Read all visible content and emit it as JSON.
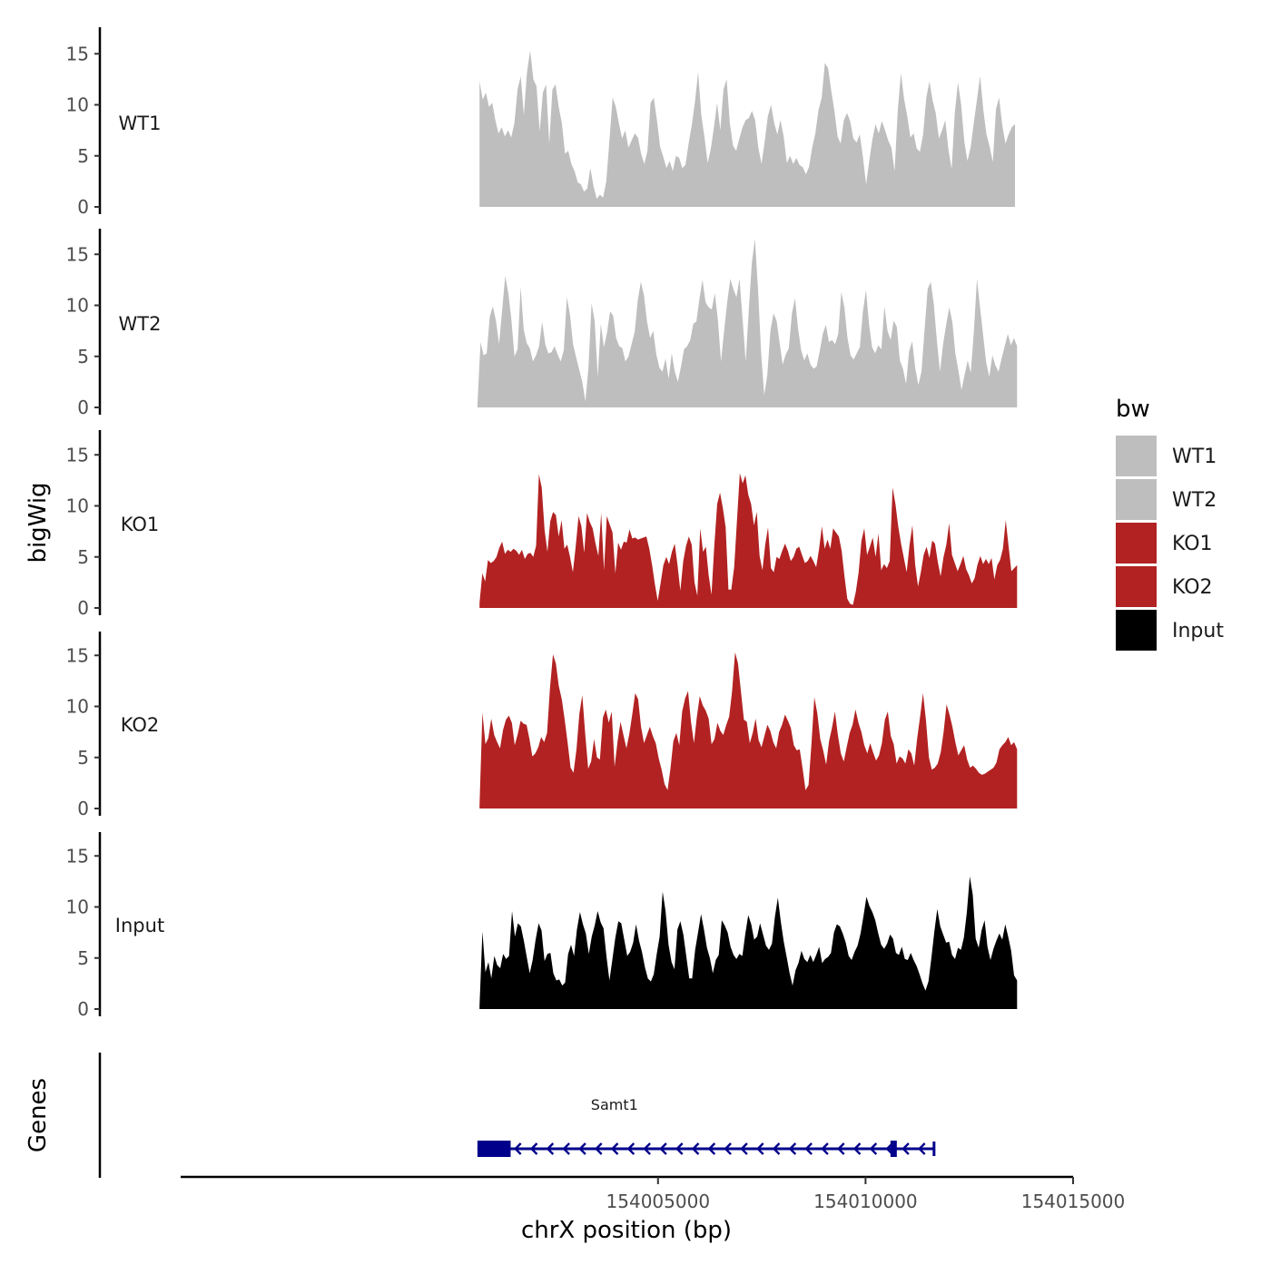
{
  "chart_data": {
    "type": "area",
    "y_axis_title": "bigWig",
    "x_axis_title": "chrX position (bp)",
    "gene_track_title": "Genes",
    "xlim": [
      153993500,
      154015000
    ],
    "x_ticks": [
      154005000,
      154010000,
      154015000
    ],
    "x_tick_labels": [
      "154005000",
      "154010000",
      "154015000"
    ],
    "ylim": [
      0,
      17.5
    ],
    "y_ticks": [
      0,
      5,
      10,
      15
    ],
    "y_tick_labels": [
      "0",
      "5",
      "10",
      "15"
    ],
    "legend": {
      "title": "bw",
      "entries": [
        {
          "label": "WT1",
          "color": "#bebebe"
        },
        {
          "label": "WT2",
          "color": "#bebebe"
        },
        {
          "label": "KO1",
          "color": "#b22222"
        },
        {
          "label": "KO2",
          "color": "#b22222"
        },
        {
          "label": "Input",
          "color": "#000000"
        }
      ]
    },
    "series": [
      {
        "name": "WT1",
        "color": "#bebebe",
        "x_start": 154000700,
        "x_end": 154013600,
        "values": [
          12.3,
          10.5,
          11.2,
          9.8,
          10.2,
          8.5,
          7.2,
          7.8,
          6.9,
          7.5,
          6.8,
          8.2,
          11.5,
          12.8,
          9.0,
          13.2,
          15.3,
          12.5,
          11.8,
          7.4,
          11.2,
          12.0,
          6.2,
          11.5,
          12.0,
          9.8,
          8.2,
          5.2,
          5.5,
          4.2,
          3.5,
          2.4,
          2.2,
          1.5,
          1.8,
          3.8,
          2.0,
          0.8,
          1.2,
          0.9,
          2.5,
          6.5,
          10.7,
          9.8,
          8.2,
          6.7,
          7.5,
          5.8,
          6.5,
          7.2,
          6.8,
          5.2,
          4.2,
          5.5,
          10.2,
          10.7,
          8.5,
          5.9,
          4.9,
          3.8,
          4.5,
          3.5,
          5.0,
          4.8,
          3.8,
          4.1,
          6.2,
          8.0,
          10.3,
          13.2,
          9.0,
          6.8,
          4.3,
          5.7,
          7.8,
          10.2,
          7.5,
          11.5,
          12.5,
          8.2,
          6.0,
          5.5,
          6.7,
          7.8,
          8.5,
          8.7,
          9.4,
          8.5,
          5.8,
          4.2,
          6.4,
          8.9,
          10.0,
          8.2,
          7.1,
          8.5,
          6.9,
          4.3,
          5.0,
          4.2,
          4.8,
          4.1,
          3.9,
          3.2,
          3.9,
          5.8,
          7.2,
          9.5,
          10.7,
          14.1,
          13.6,
          11.4,
          9.4,
          6.9,
          6.2,
          8.5,
          9.2,
          8.4,
          6.7,
          6.3,
          7.1,
          4.9,
          2.2,
          4.5,
          6.6,
          8.1,
          7.2,
          8.4,
          7.5,
          6.5,
          5.8,
          3.5,
          9.5,
          13.1,
          10.6,
          8.9,
          6.8,
          7.2,
          5.7,
          5.4,
          7.1,
          10.7,
          12.3,
          10.4,
          9.2,
          6.7,
          7.5,
          8.5,
          5.6,
          3.7,
          9.2,
          12.2,
          10.0,
          6.4,
          4.5,
          5.8,
          8.2,
          10.5,
          12.8,
          9.5,
          7.1,
          5.9,
          4.4,
          9.6,
          10.7,
          8.0,
          6.2,
          7.1,
          7.8,
          8.1
        ]
      },
      {
        "name": "WT2",
        "color": "#bebebe",
        "x_start": 154000650,
        "x_end": 154013650,
        "values": [
          0.3,
          6.4,
          5.1,
          5.3,
          8.9,
          9.9,
          8.5,
          6.2,
          9.5,
          12.9,
          11.2,
          8.6,
          5.0,
          5.7,
          11.8,
          7.6,
          6.3,
          5.8,
          4.5,
          5.1,
          6.0,
          8.4,
          6.2,
          5.3,
          5.4,
          6.0,
          5.2,
          4.5,
          5.6,
          10.8,
          9.1,
          6.2,
          4.9,
          3.7,
          2.5,
          0.6,
          3.9,
          10.2,
          8.5,
          3.0,
          8.2,
          5.9,
          7.3,
          9.4,
          9.0,
          6.8,
          6.0,
          5.8,
          4.5,
          5.0,
          6.2,
          7.4,
          10.5,
          12.3,
          11.0,
          8.4,
          6.8,
          7.5,
          5.2,
          3.9,
          3.5,
          4.8,
          2.8,
          5.3,
          3.5,
          2.5,
          4.0,
          5.7,
          6.0,
          6.6,
          8.2,
          8.4,
          10.6,
          12.5,
          10.3,
          9.8,
          9.6,
          11.2,
          8.5,
          4.5,
          7.5,
          10.3,
          12.6,
          11.6,
          10.8,
          12.6,
          8.6,
          4.5,
          9.6,
          14.2,
          16.5,
          11.5,
          5.3,
          1.2,
          3.2,
          7.5,
          9.2,
          8.5,
          6.3,
          4.2,
          5.2,
          5.8,
          9.2,
          10.7,
          7.7,
          5.6,
          4.6,
          5.3,
          4.2,
          3.8,
          4.0,
          5.5,
          7.2,
          8.1,
          6.4,
          6.6,
          6.2,
          7.2,
          11.3,
          9.8,
          6.8,
          5.1,
          4.7,
          5.3,
          5.9,
          9.4,
          11.5,
          8.2,
          5.9,
          5.3,
          6.1,
          5.7,
          9.9,
          7.5,
          6.6,
          8.5,
          7.9,
          4.6,
          3.8,
          2.3,
          5.5,
          6.5,
          3.8,
          2.2,
          3.5,
          7.6,
          11.6,
          12.3,
          10.1,
          6.5,
          3.5,
          6.2,
          8.1,
          9.8,
          8.4,
          5.3,
          3.6,
          1.7,
          3.2,
          4.6,
          3.4,
          7.4,
          12.6,
          9.8,
          7.1,
          4.4,
          3.0,
          5.1,
          4.1,
          3.5,
          4.8,
          6.0,
          7.2,
          6.1,
          6.8,
          6.0
        ]
      },
      {
        "name": "KO1",
        "color": "#b22222",
        "x_start": 154000700,
        "x_end": 154013650,
        "values": [
          0.5,
          3.4,
          2.6,
          4.7,
          4.4,
          4.6,
          5.0,
          5.9,
          6.5,
          5.3,
          5.7,
          5.5,
          5.8,
          5.6,
          5.2,
          5.7,
          4.8,
          5.3,
          5.4,
          5.0,
          6.1,
          13.1,
          11.8,
          7.6,
          5.5,
          8.5,
          9.4,
          9.1,
          7.0,
          8.6,
          5.8,
          6.2,
          5.0,
          3.5,
          6.0,
          9.0,
          8.0,
          5.4,
          9.3,
          8.4,
          7.8,
          6.3,
          5.1,
          9.3,
          3.7,
          9.0,
          8.2,
          7.4,
          3.4,
          6.4,
          5.7,
          6.5,
          6.4,
          7.7,
          6.8,
          6.9,
          6.7,
          6.8,
          6.9,
          7.0,
          5.8,
          4.2,
          2.3,
          0.7,
          2.4,
          4.2,
          5.0,
          4.3,
          5.5,
          6.3,
          4.2,
          1.7,
          4.6,
          6.1,
          7.0,
          6.2,
          2.5,
          1.2,
          7.8,
          5.5,
          6.0,
          3.2,
          1.3,
          6.1,
          10.2,
          11.3,
          9.8,
          7.9,
          1.8,
          1.8,
          4.0,
          8.6,
          13.2,
          12.2,
          13.0,
          11.1,
          10.2,
          8.1,
          9.4,
          5.1,
          3.7,
          6.2,
          7.9,
          3.9,
          3.5,
          5.0,
          4.8,
          5.6,
          6.3,
          5.6,
          4.6,
          5.0,
          5.8,
          6.0,
          5.2,
          4.4,
          4.6,
          5.1,
          4.6,
          4.0,
          5.7,
          8.0,
          5.8,
          6.7,
          5.8,
          7.8,
          7.4,
          7.0,
          5.6,
          3.1,
          0.9,
          0.4,
          0.3,
          1.6,
          3.5,
          6.6,
          7.8,
          5.2,
          6.0,
          6.9,
          5.0,
          7.3,
          3.7,
          4.3,
          3.9,
          4.6,
          11.8,
          10.2,
          8.0,
          6.3,
          4.9,
          3.5,
          6.2,
          8.1,
          4.2,
          2.1,
          3.5,
          5.2,
          6.0,
          4.9,
          6.6,
          6.3,
          4.5,
          3.1,
          5.0,
          6.2,
          8.3,
          5.2,
          4.4,
          3.6,
          4.3,
          5.1,
          3.8,
          3.2,
          2.4,
          2.9,
          4.2,
          5.1,
          4.3,
          4.8,
          4.3,
          4.9,
          2.8,
          4.2,
          4.7,
          5.8,
          8.6,
          6.1,
          3.6,
          3.9,
          4.2
        ]
      },
      {
        "name": "KO2",
        "color": "#b22222",
        "x_start": 154000700,
        "x_end": 154013650,
        "values": [
          0.3,
          9.4,
          6.3,
          6.9,
          8.8,
          7.2,
          6.5,
          5.9,
          7.7,
          8.7,
          9.1,
          8.4,
          6.2,
          7.3,
          8.6,
          8.3,
          8.2,
          6.8,
          5.1,
          5.4,
          6.0,
          7.0,
          6.5,
          7.4,
          11.8,
          15.1,
          14.2,
          12.0,
          10.7,
          8.7,
          6.4,
          4.0,
          3.5,
          5.8,
          9.3,
          11.1,
          7.2,
          3.9,
          4.6,
          6.8,
          5.0,
          4.8,
          8.9,
          9.7,
          8.4,
          9.5,
          4.1,
          6.6,
          8.5,
          7.2,
          5.9,
          7.3,
          9.2,
          11.3,
          10.7,
          8.0,
          6.4,
          7.2,
          8.0,
          7.1,
          6.4,
          4.9,
          3.8,
          2.4,
          1.8,
          3.9,
          6.6,
          7.4,
          6.2,
          9.5,
          10.8,
          11.5,
          8.5,
          6.4,
          9.0,
          11.0,
          10.1,
          9.6,
          8.8,
          6.3,
          6.8,
          8.4,
          7.6,
          7.2,
          8.2,
          9.0,
          11.5,
          15.3,
          14.2,
          11.5,
          8.7,
          8.5,
          6.4,
          7.4,
          8.8,
          6.7,
          6.0,
          7.1,
          8.2,
          7.6,
          6.5,
          5.9,
          7.5,
          8.2,
          9.2,
          8.6,
          7.9,
          6.2,
          5.7,
          5.8,
          3.9,
          1.8,
          2.3,
          6.3,
          10.9,
          9.3,
          6.8,
          5.7,
          4.3,
          6.6,
          7.9,
          9.5,
          7.2,
          5.4,
          4.6,
          6.0,
          7.4,
          8.2,
          9.7,
          8.4,
          7.5,
          6.2,
          5.4,
          6.4,
          5.5,
          4.7,
          5.2,
          6.4,
          8.7,
          9.5,
          7.1,
          6.3,
          4.4,
          5.1,
          4.9,
          4.4,
          5.8,
          5.4,
          4.2,
          6.9,
          9.0,
          11.3,
          8.6,
          5.0,
          3.8,
          4.0,
          4.4,
          5.5,
          7.5,
          10.2,
          9.2,
          8.0,
          6.5,
          5.2,
          5.7,
          6.2,
          4.8,
          4.0,
          4.2,
          3.9,
          3.5,
          3.3,
          3.4,
          3.6,
          3.8,
          4.0,
          4.5,
          5.8,
          6.2,
          6.5,
          7.0,
          6.2,
          6.5,
          5.8
        ]
      },
      {
        "name": "Input",
        "color": "#000000",
        "x_start": 154000700,
        "x_end": 154013650,
        "values": [
          0.3,
          7.6,
          3.6,
          4.6,
          3.0,
          5.2,
          4.3,
          4.0,
          5.4,
          4.9,
          5.2,
          9.6,
          7.1,
          8.4,
          8.1,
          6.7,
          5.1,
          3.5,
          4.8,
          6.8,
          8.4,
          7.7,
          4.7,
          5.4,
          5.5,
          3.5,
          2.8,
          2.9,
          2.3,
          2.6,
          5.4,
          6.3,
          5.2,
          7.8,
          9.5,
          8.3,
          7.4,
          5.4,
          7.1,
          8.2,
          9.6,
          8.5,
          7.9,
          5.1,
          2.8,
          4.9,
          7.0,
          8.6,
          8.4,
          6.8,
          5.2,
          5.6,
          6.5,
          8.3,
          6.7,
          5.6,
          4.1,
          3.0,
          2.7,
          3.4,
          5.4,
          7.1,
          11.5,
          9.6,
          6.3,
          4.6,
          3.9,
          7.8,
          8.6,
          7.3,
          5.2,
          3.0,
          3.0,
          5.8,
          7.5,
          9.3,
          7.8,
          6.0,
          5.0,
          3.5,
          4.8,
          5.3,
          8.7,
          8.2,
          7.5,
          6.1,
          5.3,
          4.9,
          5.4,
          5.2,
          7.4,
          9.2,
          8.3,
          6.8,
          7.1,
          8.4,
          7.3,
          6.2,
          5.8,
          6.4,
          9.0,
          10.9,
          8.6,
          6.6,
          5.1,
          3.5,
          2.3,
          3.8,
          4.5,
          5.7,
          4.9,
          4.6,
          5.3,
          4.6,
          5.3,
          6.1,
          4.5,
          4.9,
          5.1,
          5.5,
          7.5,
          8.3,
          8.1,
          7.4,
          6.5,
          5.2,
          4.8,
          5.6,
          6.2,
          7.4,
          9.1,
          11.0,
          10.1,
          9.5,
          8.7,
          7.4,
          6.3,
          5.9,
          6.4,
          7.3,
          6.9,
          5.5,
          5.3,
          6.1,
          4.9,
          4.8,
          5.5,
          4.8,
          4.2,
          3.4,
          2.5,
          1.8,
          2.7,
          5.0,
          7.6,
          9.8,
          8.1,
          7.3,
          6.5,
          6.6,
          5.3,
          4.9,
          6.0,
          5.8,
          7.0,
          9.5,
          13.0,
          11.2,
          6.9,
          6.0,
          7.7,
          8.7,
          6.1,
          4.8,
          5.9,
          6.7,
          7.4,
          6.8,
          8.3,
          7.1,
          5.7,
          3.3,
          2.8
        ]
      }
    ],
    "gene_track": {
      "gene_name": "Samt1",
      "strand": "-",
      "color": "#00008b",
      "start": 154000650,
      "end": 154011650,
      "exons": [
        [
          154000650,
          154001450
        ],
        [
          154010600,
          154010700
        ]
      ]
    }
  }
}
